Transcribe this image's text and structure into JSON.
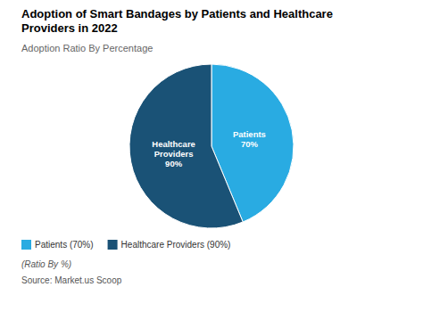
{
  "chart_data": {
    "type": "pie",
    "title": "Adoption of Smart Bandages by Patients and Healthcare\nProviders in 2022",
    "subtitle": "Adoption Ratio By Percentage",
    "categories": [
      "Patients",
      "Healthcare\nProviders"
    ],
    "values": [
      70,
      90
    ],
    "value_labels": [
      "70%",
      "90%"
    ],
    "data_labels": true,
    "colors": [
      "#29ABE2",
      "#1A5276"
    ],
    "legend": "bottom",
    "legend_labels": [
      "Patients (70%)",
      "Healthcare Providers (90%)"
    ],
    "footnote": "(Ratio By %)",
    "source": "Source: Market.us Scoop"
  }
}
